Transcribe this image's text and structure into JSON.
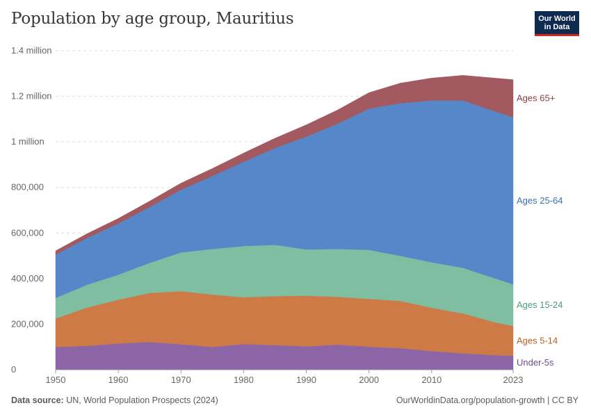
{
  "header": {
    "title": "Population by age group, Mauritius",
    "logo_line1": "Our World",
    "logo_line2": "in Data"
  },
  "footer": {
    "source_label": "Data source:",
    "source_text": "UN, World Population Prospects (2024)",
    "url_text": "OurWorldinData.org/population-growth | CC BY"
  },
  "chart_data": {
    "type": "area",
    "stacked": true,
    "title": "Population by age group, Mauritius",
    "xlabel": "",
    "ylabel": "",
    "xlim": [
      1950,
      2023
    ],
    "ylim": [
      0,
      1400000
    ],
    "y_ticks": [
      {
        "value": 0,
        "label": "0"
      },
      {
        "value": 200000,
        "label": "200,000"
      },
      {
        "value": 400000,
        "label": "400,000"
      },
      {
        "value": 600000,
        "label": "600,000"
      },
      {
        "value": 800000,
        "label": "800,000"
      },
      {
        "value": 1000000,
        "label": "1 million"
      },
      {
        "value": 1200000,
        "label": "1.2 million"
      },
      {
        "value": 1400000,
        "label": "1.4 million"
      }
    ],
    "x_ticks": [
      {
        "value": 1950,
        "label": "1950"
      },
      {
        "value": 1960,
        "label": "1960"
      },
      {
        "value": 1970,
        "label": "1970"
      },
      {
        "value": 1980,
        "label": "1980"
      },
      {
        "value": 1990,
        "label": "1990"
      },
      {
        "value": 2000,
        "label": "2000"
      },
      {
        "value": 2010,
        "label": "2010"
      },
      {
        "value": 2023,
        "label": "2023"
      }
    ],
    "x": [
      1950,
      1955,
      1960,
      1965,
      1970,
      1975,
      1980,
      1985,
      1990,
      1995,
      2000,
      2005,
      2010,
      2015,
      2020,
      2023
    ],
    "series": [
      {
        "name": "Under-5s",
        "label": "Under-5s",
        "color": "#8c65a6",
        "values": [
          100000,
          105000,
          115000,
          122000,
          112000,
          100000,
          113000,
          108000,
          103000,
          110000,
          101000,
          95000,
          82000,
          72000,
          64000,
          62000
        ]
      },
      {
        "name": "Ages 5-14",
        "label": "Ages 5-14",
        "color": "#cd7a47",
        "values": [
          125000,
          168000,
          192000,
          215000,
          233000,
          230000,
          205000,
          215000,
          222000,
          210000,
          210000,
          207000,
          190000,
          175000,
          145000,
          130000
        ]
      },
      {
        "name": "Ages 15-24",
        "label": "Ages 15-24",
        "color": "#7fbea1",
        "values": [
          90000,
          100000,
          110000,
          132000,
          170000,
          200000,
          225000,
          225000,
          203000,
          210000,
          215000,
          198000,
          200000,
          200000,
          193000,
          183000
        ]
      },
      {
        "name": "Ages 25-64",
        "label": "Ages 25-64",
        "color": "#5687c8",
        "values": [
          190000,
          205000,
          225000,
          245000,
          275000,
          320000,
          370000,
          425000,
          495000,
          550000,
          620000,
          670000,
          710000,
          735000,
          733000,
          733000
        ]
      },
      {
        "name": "Ages 65+",
        "label": "Ages 65+",
        "color": "#a25a60",
        "values": [
          17000,
          19000,
          22000,
          26000,
          29000,
          33000,
          38000,
          43000,
          52000,
          60000,
          70000,
          88000,
          98000,
          110000,
          145000,
          165000
        ]
      }
    ],
    "label_colors": {
      "Under-5s": "#6d4b92",
      "Ages 5-14": "#b35f25",
      "Ages 15-24": "#4b9c79",
      "Ages 25-64": "#3b6fb3",
      "Ages 65+": "#8a3e45"
    },
    "grid": true,
    "legend": "right-inline"
  }
}
